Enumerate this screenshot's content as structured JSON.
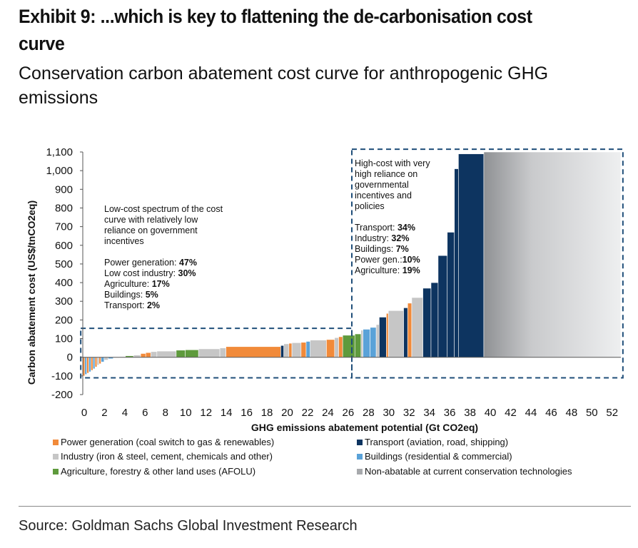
{
  "header": {
    "title": "Exhibit 9: ...which is key to flattening the de-carbonisation cost curve",
    "subtitle": "Conservation carbon abatement cost curve for anthropogenic GHG emissions"
  },
  "footer": {
    "source": "Source: Goldman Sachs Global Investment Research"
  },
  "colors": {
    "power": "#f18a3a",
    "industry": "#c6c6c6",
    "agriculture": "#5e9a3c",
    "transport": "#0d3460",
    "buildings": "#5aa2d8",
    "non_abatable": "#a7a9ac",
    "dashed_box": "#1f4e79"
  },
  "annotations": {
    "low_cost": {
      "heading": [
        "Low-cost spectrum of the cost",
        "curve with relatively low",
        "reliance on government",
        "incentives"
      ],
      "lines": [
        {
          "label": "Power generation: ",
          "value": "47%"
        },
        {
          "label": "Low cost industry: ",
          "value": "30%"
        },
        {
          "label": "Agriculture: ",
          "value": "17%"
        },
        {
          "label": "Buildings: ",
          "value": "5%"
        },
        {
          "label": "Transport: ",
          "value": "2%"
        }
      ]
    },
    "high_cost": {
      "heading": [
        "High-cost with very",
        "high reliance on",
        "governmental",
        "incentives and",
        "policies"
      ],
      "lines": [
        {
          "label": "Transport: ",
          "value": "34%"
        },
        {
          "label": "Industry: ",
          "value": "32%"
        },
        {
          "label": "Buildings: ",
          "value": "7%"
        },
        {
          "label": "Power gen.:",
          "value": "10%"
        },
        {
          "label": "Agriculture: ",
          "value": "19%"
        }
      ]
    }
  },
  "chart_data": {
    "type": "bar",
    "subtype": "marginal-abatement-cost-curve",
    "xlabel": "GHG emissions abatement potential  (Gt CO2eq)",
    "ylabel": "Carbon abatement cost (US$/tnCO2eq)",
    "xlim": [
      0,
      53
    ],
    "ylim": [
      -200,
      1100
    ],
    "x_ticks": [
      0,
      2,
      4,
      6,
      8,
      10,
      12,
      14,
      16,
      18,
      20,
      22,
      24,
      26,
      28,
      30,
      32,
      34,
      36,
      38,
      40,
      42,
      44,
      46,
      48,
      50,
      52
    ],
    "y_ticks": [
      -200,
      -100,
      0,
      100,
      200,
      300,
      400,
      500,
      600,
      700,
      800,
      900,
      1000,
      1100
    ],
    "y_tick_labels": [
      "-200",
      "-100",
      "0",
      "100",
      "200",
      "300",
      "400",
      "500",
      "600",
      "700",
      "800",
      "900",
      "1,000",
      "1,100"
    ],
    "grid": false,
    "legend": [
      {
        "key": "power",
        "label": "Power generation (coal switch to gas & renewables)"
      },
      {
        "key": "transport",
        "label": "Transport (aviation, road, shipping)"
      },
      {
        "key": "industry",
        "label": "Industry (iron & steel, cement, chemicals and other)"
      },
      {
        "key": "buildings",
        "label": "Buildings (residential & commercial)"
      },
      {
        "key": "agriculture",
        "label": "Agriculture, forestry & other land uses (AFOLU)"
      },
      {
        "key": "non_abatable",
        "label": "Non-abatable at current conservation technologies"
      }
    ],
    "legend_placement": "bottom",
    "bars": [
      {
        "x0": 0.0,
        "x1": 0.2,
        "y": -100,
        "sector": "power"
      },
      {
        "x0": 0.2,
        "x1": 0.4,
        "y": -92,
        "sector": "buildings"
      },
      {
        "x0": 0.4,
        "x1": 0.6,
        "y": -85,
        "sector": "power"
      },
      {
        "x0": 0.6,
        "x1": 0.8,
        "y": -78,
        "sector": "buildings"
      },
      {
        "x0": 0.8,
        "x1": 1.0,
        "y": -70,
        "sector": "power"
      },
      {
        "x0": 1.0,
        "x1": 1.2,
        "y": -62,
        "sector": "buildings"
      },
      {
        "x0": 1.2,
        "x1": 1.4,
        "y": -52,
        "sector": "power"
      },
      {
        "x0": 1.4,
        "x1": 1.6,
        "y": -42,
        "sector": "industry"
      },
      {
        "x0": 1.6,
        "x1": 1.8,
        "y": -35,
        "sector": "power"
      },
      {
        "x0": 1.8,
        "x1": 2.1,
        "y": -25,
        "sector": "buildings"
      },
      {
        "x0": 2.1,
        "x1": 2.5,
        "y": -15,
        "sector": "industry"
      },
      {
        "x0": 2.5,
        "x1": 3.0,
        "y": -8,
        "sector": "buildings"
      },
      {
        "x0": 3.0,
        "x1": 3.6,
        "y": -3,
        "sector": "industry"
      },
      {
        "x0": 3.6,
        "x1": 4.2,
        "y": 3,
        "sector": "industry"
      },
      {
        "x0": 4.2,
        "x1": 5.0,
        "y": 8,
        "sector": "agriculture"
      },
      {
        "x0": 5.0,
        "x1": 5.7,
        "y": 12,
        "sector": "industry"
      },
      {
        "x0": 5.7,
        "x1": 6.2,
        "y": 20,
        "sector": "power"
      },
      {
        "x0": 6.2,
        "x1": 6.7,
        "y": 25,
        "sector": "power"
      },
      {
        "x0": 6.7,
        "x1": 7.3,
        "y": 30,
        "sector": "industry"
      },
      {
        "x0": 7.3,
        "x1": 9.2,
        "y": 33,
        "sector": "industry"
      },
      {
        "x0": 9.2,
        "x1": 10.1,
        "y": 38,
        "sector": "agriculture"
      },
      {
        "x0": 10.1,
        "x1": 11.4,
        "y": 40,
        "sector": "agriculture"
      },
      {
        "x0": 11.4,
        "x1": 13.5,
        "y": 45,
        "sector": "industry"
      },
      {
        "x0": 13.5,
        "x1": 14.1,
        "y": 50,
        "sector": "industry"
      },
      {
        "x0": 14.1,
        "x1": 19.5,
        "y": 57,
        "sector": "power"
      },
      {
        "x0": 19.5,
        "x1": 19.8,
        "y": 63,
        "sector": "transport"
      },
      {
        "x0": 19.8,
        "x1": 20.3,
        "y": 72,
        "sector": "industry"
      },
      {
        "x0": 20.3,
        "x1": 20.6,
        "y": 75,
        "sector": "power"
      },
      {
        "x0": 20.6,
        "x1": 21.5,
        "y": 78,
        "sector": "industry"
      },
      {
        "x0": 21.5,
        "x1": 22.0,
        "y": 80,
        "sector": "power"
      },
      {
        "x0": 22.0,
        "x1": 22.4,
        "y": 85,
        "sector": "buildings"
      },
      {
        "x0": 22.4,
        "x1": 24.0,
        "y": 92,
        "sector": "industry"
      },
      {
        "x0": 24.0,
        "x1": 24.8,
        "y": 95,
        "sector": "power"
      },
      {
        "x0": 24.8,
        "x1": 25.2,
        "y": 105,
        "sector": "industry"
      },
      {
        "x0": 25.2,
        "x1": 25.6,
        "y": 110,
        "sector": "power"
      },
      {
        "x0": 25.6,
        "x1": 26.8,
        "y": 118,
        "sector": "agriculture"
      },
      {
        "x0": 26.8,
        "x1": 27.4,
        "y": 125,
        "sector": "agriculture"
      },
      {
        "x0": 27.4,
        "x1": 27.6,
        "y": 145,
        "sector": "industry"
      },
      {
        "x0": 27.6,
        "x1": 28.3,
        "y": 150,
        "sector": "buildings"
      },
      {
        "x0": 28.3,
        "x1": 28.9,
        "y": 160,
        "sector": "buildings"
      },
      {
        "x0": 28.9,
        "x1": 29.2,
        "y": 175,
        "sector": "industry"
      },
      {
        "x0": 29.2,
        "x1": 29.9,
        "y": 215,
        "sector": "transport"
      },
      {
        "x0": 29.9,
        "x1": 30.1,
        "y": 235,
        "sector": "power"
      },
      {
        "x0": 30.1,
        "x1": 31.6,
        "y": 250,
        "sector": "industry"
      },
      {
        "x0": 31.6,
        "x1": 32.0,
        "y": 265,
        "sector": "transport"
      },
      {
        "x0": 32.0,
        "x1": 32.4,
        "y": 290,
        "sector": "power"
      },
      {
        "x0": 32.4,
        "x1": 33.5,
        "y": 320,
        "sector": "industry"
      },
      {
        "x0": 33.5,
        "x1": 34.3,
        "y": 370,
        "sector": "transport"
      },
      {
        "x0": 34.3,
        "x1": 35.0,
        "y": 400,
        "sector": "transport"
      },
      {
        "x0": 35.0,
        "x1": 35.9,
        "y": 545,
        "sector": "transport"
      },
      {
        "x0": 35.9,
        "x1": 36.6,
        "y": 670,
        "sector": "transport"
      },
      {
        "x0": 36.6,
        "x1": 37.0,
        "y": 1010,
        "sector": "transport"
      },
      {
        "x0": 37.0,
        "x1": 39.5,
        "y": 1090,
        "sector": "transport"
      },
      {
        "x0": 39.5,
        "x1": 53.0,
        "y": 1100,
        "sector": "non_abatable"
      }
    ],
    "dashed_regions": [
      {
        "name": "low-cost",
        "x0": -0.2,
        "x1": 26.5,
        "y0": -110,
        "y1": 155
      },
      {
        "name": "high-cost",
        "x0": 26.5,
        "x1": 53.2,
        "y0": -110,
        "y1": 1115
      }
    ]
  }
}
